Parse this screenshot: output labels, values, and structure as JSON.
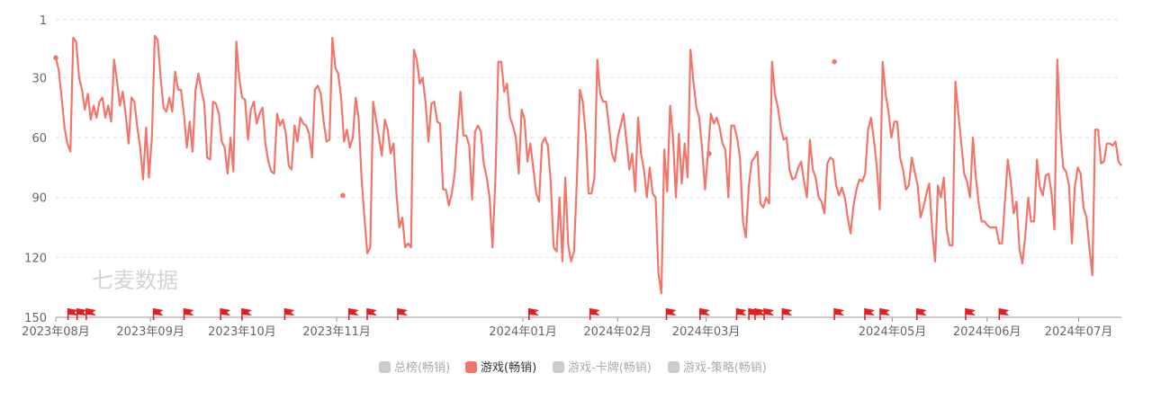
{
  "watermark": "七麦数据",
  "colors": {
    "active_series": "#f2756b",
    "inactive_legend": "#cccccc",
    "axis": "#999999",
    "grid": "#dddddd",
    "flag": "#e02020",
    "tick_text": "#666666",
    "legend_active_text": "#333333",
    "legend_inactive_text": "#aaaaaa"
  },
  "chart_data": {
    "type": "line",
    "y_axis": {
      "inverted": true,
      "ylim": [
        1,
        150
      ],
      "ticks": [
        1,
        30,
        60,
        90,
        120,
        150
      ],
      "grid": true,
      "grid_style": "dashed"
    },
    "x_axis": {
      "range": [
        "2023-08-01",
        "2024-07-15"
      ],
      "tick_labels": [
        "2023年08月",
        "2023年09月",
        "2023年10月",
        "2023年11月",
        "2024年01月",
        "2024年02月",
        "2024年03月",
        "2024年05月",
        "2024年06月",
        "2024年07月"
      ],
      "tick_dates": [
        "2023-08-01",
        "2023-09-01",
        "2023-10-01",
        "2023-11-01",
        "2024-01-01",
        "2024-02-01",
        "2024-03-01",
        "2024-05-01",
        "2024-06-01",
        "2024-07-01"
      ]
    },
    "legend": {
      "position": "bottom-center",
      "items": [
        {
          "label": "总榜(畅销)",
          "active": false
        },
        {
          "label": "游戏(畅销)",
          "active": true
        },
        {
          "label": "游戏-卡牌(畅销)",
          "active": false
        },
        {
          "label": "游戏-策略(畅销)",
          "active": false
        }
      ]
    },
    "series": [
      {
        "name": "游戏(畅销)",
        "x_start": "2023-08-01",
        "x_end": "2024-07-15",
        "values": [
          20,
          26,
          40,
          55,
          63,
          67,
          10,
          12,
          30,
          36,
          46,
          38,
          51,
          44,
          50,
          42,
          40,
          50,
          44,
          52,
          21,
          31,
          44,
          37,
          48,
          63,
          40,
          42,
          55,
          65,
          81,
          55,
          80,
          60,
          9,
          11,
          30,
          45,
          47,
          40,
          47,
          27,
          36,
          36,
          48,
          65,
          52,
          67,
          36,
          28,
          36,
          43,
          70,
          71,
          42,
          43,
          48,
          62,
          65,
          78,
          60,
          77,
          12,
          30,
          40,
          41,
          61,
          46,
          42,
          53,
          48,
          45,
          63,
          72,
          77,
          78,
          48,
          54,
          51,
          58,
          74,
          76,
          54,
          62,
          50,
          53,
          54,
          58,
          70,
          36,
          34,
          38,
          52,
          62,
          61,
          10,
          25,
          28,
          40,
          62,
          56,
          65,
          60,
          40,
          50,
          80,
          100,
          118,
          115,
          42,
          51,
          60,
          69,
          51,
          56,
          68,
          63,
          88,
          105,
          100,
          115,
          113,
          115,
          16,
          21,
          33,
          30,
          42,
          62,
          43,
          42,
          52,
          53,
          86,
          86,
          94,
          88,
          78,
          57,
          37,
          59,
          59,
          64,
          91,
          57,
          54,
          57,
          73,
          80,
          90,
          115,
          80,
          22,
          22,
          37,
          33,
          50,
          54,
          60,
          78,
          46,
          51,
          72,
          63,
          75,
          88,
          92,
          63,
          60,
          64,
          82,
          115,
          117,
          90,
          122,
          80,
          114,
          122,
          117,
          80,
          36,
          42,
          58,
          88,
          88,
          80,
          21,
          38,
          42,
          42,
          54,
          68,
          72,
          60,
          54,
          48,
          62,
          76,
          68,
          87,
          50,
          68,
          76,
          90,
          75,
          88,
          90,
          128,
          138,
          66,
          87,
          44,
          60,
          90,
          58,
          83,
          63,
          80,
          16,
          32,
          45,
          50,
          66,
          86,
          68,
          48,
          53,
          50,
          55,
          63,
          66,
          90,
          54,
          54,
          60,
          70,
          102,
          110,
          85,
          72,
          70,
          67,
          93,
          95,
          90,
          93,
          22,
          38,
          45,
          55,
          61,
          60,
          76,
          81,
          80,
          75,
          72,
          82,
          90,
          61,
          76,
          80,
          90,
          92,
          98,
          73,
          70,
          71,
          84,
          89,
          85,
          90,
          100,
          108,
          94,
          86,
          81,
          82,
          78,
          56,
          50,
          61,
          75,
          96,
          22,
          38,
          47,
          60,
          52,
          52,
          70,
          76,
          86,
          84,
          70,
          77,
          84,
          100,
          95,
          88,
          83,
          106,
          122,
          84,
          90,
          80,
          106,
          114,
          114,
          32,
          48,
          63,
          78,
          82,
          90,
          60,
          80,
          93,
          102,
          102,
          104,
          105,
          105,
          105,
          113,
          113,
          92,
          71,
          82,
          98,
          92,
          116,
          123,
          109,
          90,
          102,
          102,
          71,
          85,
          89,
          79,
          78,
          88,
          106,
          21,
          56,
          75,
          77,
          84,
          113,
          85,
          75,
          78,
          95,
          100,
          115,
          129,
          56,
          56,
          73,
          72,
          63,
          63,
          64,
          62,
          72,
          74
        ],
        "markers": [
          {
            "date": "2023-08-01",
            "value": 20
          },
          {
            "date": "2023-11-03",
            "value": 89
          },
          {
            "date": "2024-03-02",
            "value": 68
          },
          {
            "date": "2024-04-12",
            "value": 22
          }
        ]
      }
    ],
    "event_flag_dates": [
      "2023-08-05",
      "2023-08-08",
      "2023-08-11",
      "2023-09-02",
      "2023-09-12",
      "2023-09-24",
      "2023-10-01",
      "2023-10-15",
      "2023-11-05",
      "2023-11-11",
      "2023-11-21",
      "2024-01-03",
      "2024-01-23",
      "2024-02-17",
      "2024-02-28",
      "2024-03-11",
      "2024-03-15",
      "2024-03-17",
      "2024-03-20",
      "2024-03-26",
      "2024-04-12",
      "2024-04-22",
      "2024-04-27",
      "2024-05-09",
      "2024-05-25",
      "2024-06-05"
    ]
  }
}
